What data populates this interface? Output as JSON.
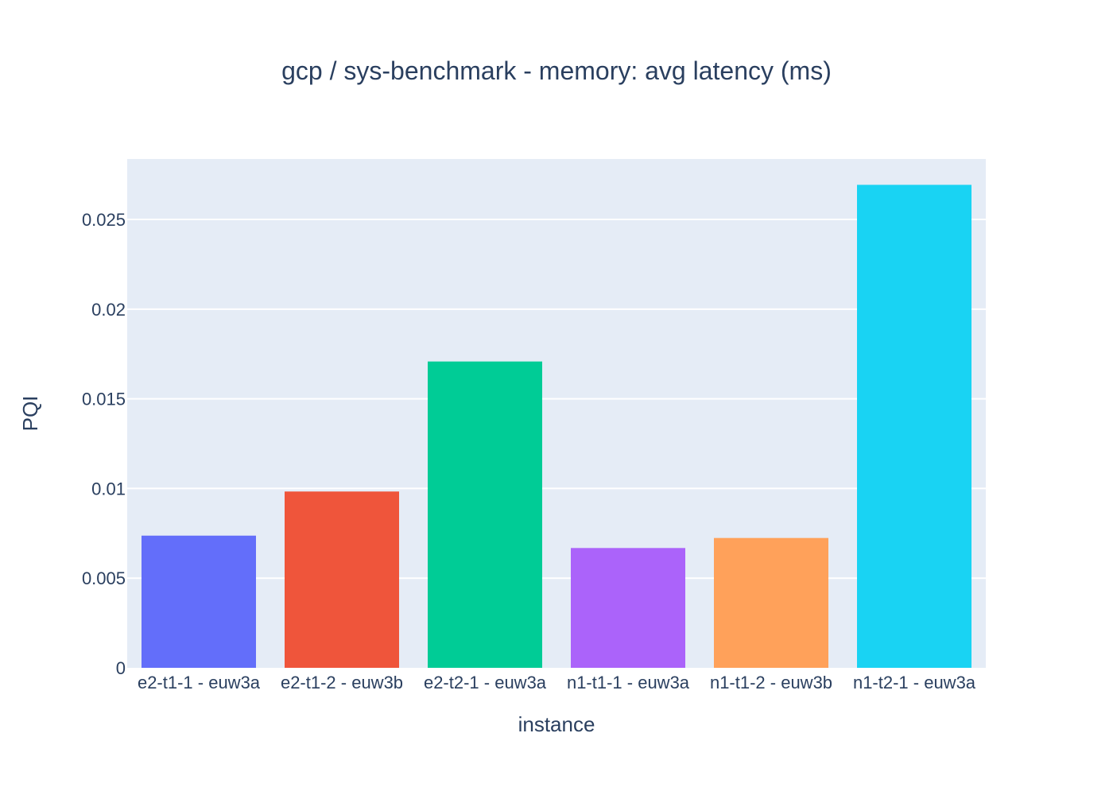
{
  "chart_data": {
    "type": "bar",
    "title": "gcp / sys-benchmark - memory: avg latency (ms)",
    "xlabel": "instance",
    "ylabel": "PQI",
    "categories": [
      "e2-t1-1 - euw3a",
      "e2-t1-2 - euw3b",
      "e2-t2-1 - euw3a",
      "n1-t1-1 - euw3a",
      "n1-t1-2 - euw3b",
      "n1-t2-1 - euw3a"
    ],
    "values": [
      0.00737,
      0.00983,
      0.01708,
      0.00668,
      0.00724,
      0.02693
    ],
    "colors": [
      "#636efa",
      "#ef553b",
      "#00cc96",
      "#ab63fa",
      "#ffa15a",
      "#19d3f3"
    ],
    "ylim": [
      0,
      0.02837
    ],
    "yticks": [
      0,
      0.005,
      0.01,
      0.015,
      0.02,
      0.025
    ],
    "ytick_labels": [
      "0",
      "0.005",
      "0.01",
      "0.015",
      "0.02",
      "0.025"
    ],
    "grid": true,
    "legend": "none",
    "plot_background": "#e5ecf6",
    "grid_color": "#ffffff"
  }
}
